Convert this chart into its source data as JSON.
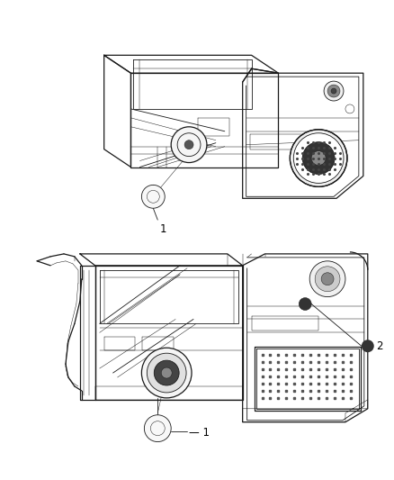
{
  "title": "",
  "background_color": "#ffffff",
  "fig_width": 4.38,
  "fig_height": 5.33,
  "dpi": 100,
  "label1_text": "1",
  "label2_text": "2",
  "lc": "#1a1a1a",
  "lc_light": "#888888",
  "lc_mid": "#555555",
  "fill_dark": "#222222",
  "fill_mid": "#aaaaaa",
  "fill_light": "#dddddd"
}
